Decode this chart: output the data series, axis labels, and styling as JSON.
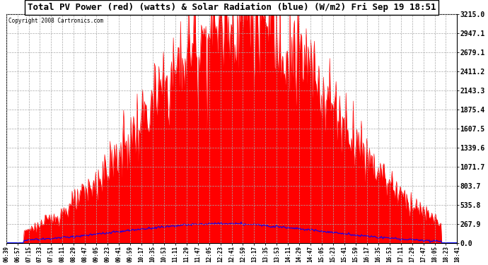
{
  "title": "Total PV Power (red) (watts) & Solar Radiation (blue) (W/m2) Fri Sep 19 18:51",
  "copyright": "Copyright 2008 Cartronics.com",
  "bg_color": "#ffffff",
  "plot_bg_color": "#ffffff",
  "grid_color": "#aaaaaa",
  "title_bg": "#ffffff",
  "yticks": [
    0.0,
    267.9,
    535.8,
    803.7,
    1071.7,
    1339.6,
    1607.5,
    1875.4,
    2143.3,
    2411.2,
    2679.1,
    2947.1,
    3215.0
  ],
  "ymax": 3215.0,
  "xtick_labels": [
    "06:39",
    "06:57",
    "07:15",
    "07:33",
    "07:51",
    "08:11",
    "08:29",
    "08:47",
    "09:05",
    "09:23",
    "09:41",
    "09:59",
    "10:17",
    "10:35",
    "10:53",
    "11:11",
    "11:29",
    "11:47",
    "12:05",
    "12:23",
    "12:41",
    "12:59",
    "13:17",
    "13:35",
    "13:53",
    "14:11",
    "14:29",
    "14:47",
    "15:05",
    "15:23",
    "15:41",
    "15:59",
    "16:17",
    "16:35",
    "16:53",
    "17:11",
    "17:29",
    "17:47",
    "18:05",
    "18:23",
    "18:41"
  ],
  "pv_color": "#ff0000",
  "solar_color": "#0000ff",
  "peak_value": 3215.0,
  "solar_peak": 267.9
}
